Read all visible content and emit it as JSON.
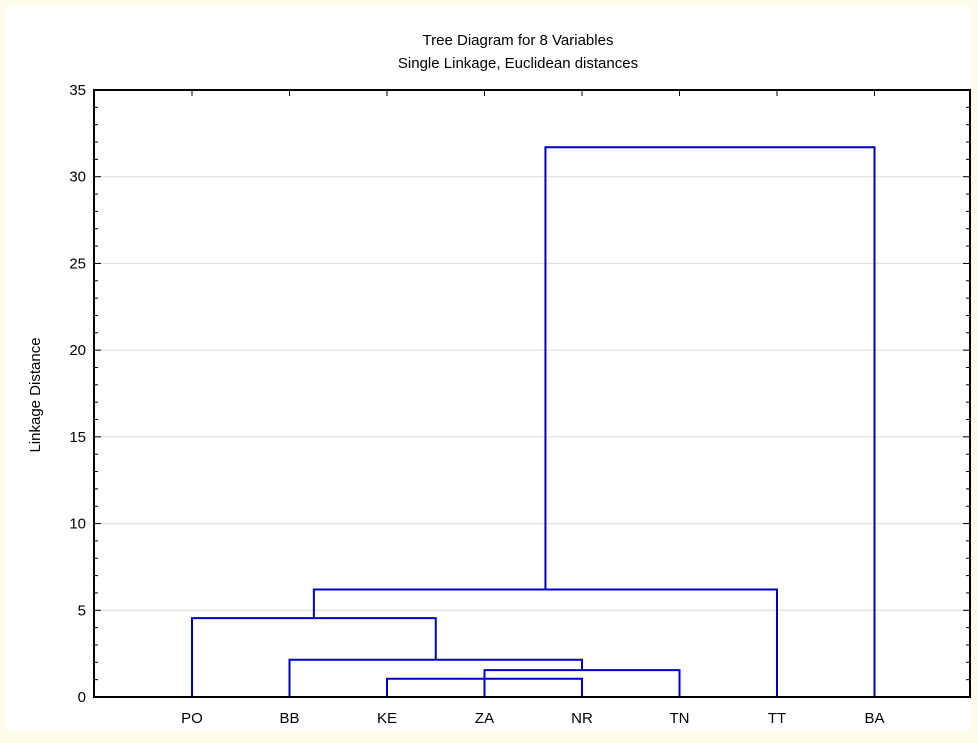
{
  "chart_data": {
    "type": "dendrogram",
    "title": "Tree Diagram for 8 Variables",
    "subtitle": "Single Linkage, Euclidean distances",
    "ylabel": "Linkage Distance",
    "xlabel": "",
    "ylim": [
      0,
      35
    ],
    "yticks": [
      0,
      5,
      10,
      15,
      20,
      25,
      30,
      35
    ],
    "grid": true,
    "leaves": [
      "PO",
      "BB",
      "KE",
      "ZA",
      "NR",
      "TN",
      "TT",
      "BA"
    ],
    "merges": [
      {
        "left": "KE",
        "right": "NR",
        "distance": 1.05
      },
      {
        "left": "ZA",
        "right": "TN",
        "distance": 1.55
      },
      {
        "left": "BB",
        "right": "ZA",
        "distance": 2.15
      },
      {
        "left": "PO",
        "right": "BB",
        "distance": 4.55
      },
      {
        "left": "PO",
        "right": "TT",
        "distance": 6.2
      },
      {
        "left": "PO",
        "right": "BA",
        "distance": 31.7
      }
    ],
    "line_color": "#0000cc"
  }
}
